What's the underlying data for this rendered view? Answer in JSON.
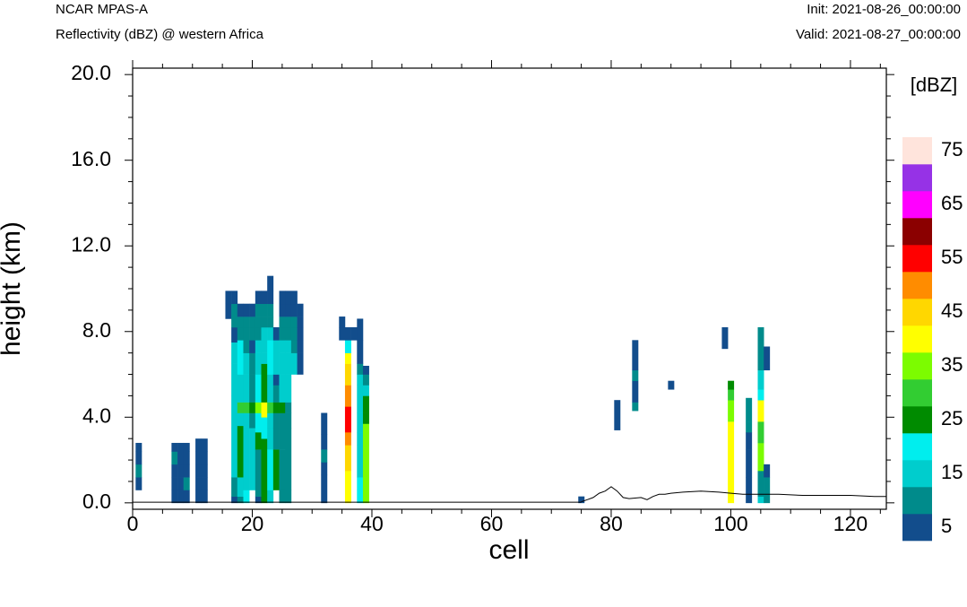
{
  "header": {
    "model": "NCAR MPAS-A",
    "field": "Reflectivity (dBZ) @ western Africa",
    "init": "Init: 2021-08-26_00:00:00",
    "valid": "Valid: 2021-08-27_00:00:00"
  },
  "chart_data": {
    "type": "heatmap",
    "xlabel": "cell",
    "ylabel": "height (km)",
    "xlim": [
      0,
      126
    ],
    "ylim": [
      -0.3,
      20.3
    ],
    "x_ticks": [
      "0",
      "20",
      "40",
      "60",
      "80",
      "100",
      "120"
    ],
    "x_tick_values": [
      0,
      20,
      40,
      60,
      80,
      100,
      120
    ],
    "y_ticks": [
      "0.0",
      "4.0",
      "8.0",
      "12.0",
      "16.0",
      "20.0"
    ],
    "y_tick_values": [
      0,
      4,
      8,
      12,
      16,
      20
    ],
    "grid": false,
    "colorbar": {
      "title": "[dBZ]",
      "tick_labels": [
        "5",
        "15",
        "25",
        "35",
        "45",
        "55",
        "65",
        "75"
      ],
      "levels": [
        5,
        10,
        15,
        20,
        25,
        30,
        35,
        40,
        45,
        50,
        55,
        60,
        65,
        70,
        75
      ],
      "colors": [
        "#124d8c",
        "#008b8b",
        "#00cdcd",
        "#00eeee",
        "#008b00",
        "#32cd32",
        "#7cfc00",
        "#ffff00",
        "#ffd700",
        "#ff8c00",
        "#ff0000",
        "#8b0000",
        "#ff00ff",
        "#9632e6",
        "#ffe4dc"
      ]
    },
    "cell_dz_km": 0.6,
    "columns": [
      {
        "x": 1,
        "bins": [
          [
            0.6,
            1.2,
            5
          ],
          [
            1.2,
            1.8,
            10
          ],
          [
            1.8,
            2.4,
            5
          ],
          [
            2.4,
            2.8,
            5
          ]
        ]
      },
      {
        "x": 7,
        "bins": [
          [
            0,
            0.6,
            5
          ],
          [
            0.6,
            1.2,
            5
          ],
          [
            1.2,
            1.8,
            5
          ],
          [
            1.8,
            2.4,
            10
          ],
          [
            2.4,
            2.8,
            5
          ]
        ]
      },
      {
        "x": 8,
        "bins": [
          [
            0,
            0.6,
            5
          ],
          [
            0.6,
            1.2,
            5
          ],
          [
            1.2,
            1.8,
            5
          ],
          [
            1.8,
            2.4,
            5
          ],
          [
            2.4,
            2.8,
            5
          ]
        ]
      },
      {
        "x": 9,
        "bins": [
          [
            0,
            0.6,
            5
          ],
          [
            0.6,
            1.2,
            10
          ],
          [
            1.2,
            1.8,
            5
          ],
          [
            1.8,
            2.4,
            5
          ],
          [
            2.4,
            2.8,
            5
          ]
        ]
      },
      {
        "x": 11,
        "bins": [
          [
            0,
            0.6,
            5
          ],
          [
            0.6,
            1.2,
            5
          ],
          [
            1.2,
            1.8,
            5
          ],
          [
            1.8,
            2.4,
            5
          ],
          [
            2.4,
            3.0,
            5
          ]
        ]
      },
      {
        "x": 12,
        "bins": [
          [
            0,
            0.6,
            5
          ],
          [
            0.6,
            1.2,
            5
          ],
          [
            1.2,
            1.8,
            5
          ],
          [
            1.8,
            2.4,
            5
          ],
          [
            2.4,
            3.0,
            5
          ]
        ]
      },
      {
        "x": 16,
        "bins": [
          [
            8.6,
            9.3,
            5
          ],
          [
            9.3,
            9.9,
            5
          ]
        ]
      },
      {
        "x": 17,
        "bins": [
          [
            0,
            0.3,
            5
          ],
          [
            0.3,
            1.2,
            10
          ],
          [
            1.2,
            3.5,
            15
          ],
          [
            3.5,
            5.0,
            15
          ],
          [
            5.0,
            6.5,
            15
          ],
          [
            6.5,
            7.5,
            15
          ],
          [
            7.5,
            8.2,
            5
          ],
          [
            8.2,
            9.3,
            10
          ],
          [
            9.3,
            9.9,
            5
          ]
        ]
      },
      {
        "x": 18,
        "bins": [
          [
            0,
            0.3,
            10
          ],
          [
            0.3,
            1.2,
            15
          ],
          [
            1.2,
            3.6,
            25
          ],
          [
            3.6,
            4.2,
            15
          ],
          [
            4.2,
            4.7,
            30
          ],
          [
            4.7,
            6.0,
            15
          ],
          [
            6.0,
            7.6,
            20
          ],
          [
            7.6,
            8.2,
            10
          ],
          [
            8.2,
            8.7,
            10
          ],
          [
            8.7,
            9.3,
            5
          ]
        ]
      },
      {
        "x": 19,
        "bins": [
          [
            0,
            0.6,
            20
          ],
          [
            0.6,
            3.5,
            15
          ],
          [
            3.5,
            4.2,
            15
          ],
          [
            4.2,
            4.7,
            30
          ],
          [
            4.7,
            6.0,
            15
          ],
          [
            6.0,
            7.0,
            15
          ],
          [
            7.0,
            8.2,
            10
          ],
          [
            8.2,
            8.7,
            10
          ],
          [
            8.7,
            9.3,
            5
          ]
        ]
      },
      {
        "x": 20,
        "bins": [
          [
            0.6,
            3.5,
            15
          ],
          [
            3.5,
            4.2,
            10
          ],
          [
            4.2,
            4.7,
            25
          ],
          [
            4.7,
            6.0,
            10
          ],
          [
            6.0,
            7.0,
            10
          ],
          [
            7.0,
            7.6,
            5
          ],
          [
            7.6,
            8.2,
            10
          ],
          [
            8.2,
            8.7,
            10
          ],
          [
            8.7,
            9.3,
            5
          ]
        ]
      },
      {
        "x": 21,
        "bins": [
          [
            0,
            0.3,
            5
          ],
          [
            0.3,
            2.5,
            10
          ],
          [
            2.5,
            3.3,
            25
          ],
          [
            3.3,
            4.2,
            20
          ],
          [
            4.2,
            4.7,
            35
          ],
          [
            4.7,
            6.0,
            20
          ],
          [
            6.0,
            7.0,
            15
          ],
          [
            7.0,
            7.6,
            15
          ],
          [
            7.6,
            8.2,
            10
          ],
          [
            8.2,
            8.7,
            10
          ],
          [
            8.7,
            9.3,
            10
          ],
          [
            9.3,
            9.9,
            5
          ]
        ]
      },
      {
        "x": 22,
        "bins": [
          [
            0,
            0.6,
            25
          ],
          [
            0.6,
            3.0,
            25
          ],
          [
            3.0,
            4.0,
            20
          ],
          [
            4.0,
            4.7,
            40
          ],
          [
            4.7,
            6.5,
            25
          ],
          [
            6.5,
            7.0,
            15
          ],
          [
            7.0,
            7.6,
            15
          ],
          [
            7.6,
            8.2,
            15
          ],
          [
            8.2,
            8.7,
            10
          ],
          [
            8.7,
            9.3,
            10
          ],
          [
            9.3,
            9.9,
            5
          ]
        ]
      },
      {
        "x": 23,
        "bins": [
          [
            0,
            0.6,
            15
          ],
          [
            0.6,
            2.5,
            20
          ],
          [
            2.5,
            3.5,
            15
          ],
          [
            3.5,
            4.2,
            15
          ],
          [
            4.2,
            4.7,
            30
          ],
          [
            4.7,
            6.0,
            15
          ],
          [
            6.0,
            7.6,
            20
          ],
          [
            7.6,
            8.2,
            15
          ],
          [
            8.2,
            8.7,
            10
          ],
          [
            8.7,
            9.3,
            10
          ],
          [
            9.3,
            9.9,
            5
          ],
          [
            9.9,
            10.6,
            5
          ]
        ]
      },
      {
        "x": 24,
        "bins": [
          [
            0.6,
            2.5,
            25
          ],
          [
            2.5,
            3.5,
            10
          ],
          [
            3.5,
            4.2,
            10
          ],
          [
            4.2,
            4.7,
            25
          ],
          [
            4.7,
            5.5,
            10
          ],
          [
            5.5,
            6.0,
            5
          ],
          [
            6.0,
            7.6,
            15
          ],
          [
            7.6,
            8.2,
            5
          ]
        ]
      },
      {
        "x": 25,
        "bins": [
          [
            0,
            0.6,
            10
          ],
          [
            0.6,
            2.5,
            10
          ],
          [
            2.5,
            3.5,
            10
          ],
          [
            3.5,
            4.2,
            10
          ],
          [
            4.2,
            4.7,
            25
          ],
          [
            4.7,
            6.0,
            15
          ],
          [
            6.0,
            7.0,
            15
          ],
          [
            7.0,
            7.6,
            15
          ],
          [
            7.6,
            8.2,
            10
          ],
          [
            8.2,
            8.7,
            10
          ],
          [
            8.7,
            9.3,
            5
          ],
          [
            9.3,
            9.9,
            5
          ]
        ]
      },
      {
        "x": 26,
        "bins": [
          [
            0,
            0.6,
            10
          ],
          [
            0.6,
            3.5,
            10
          ],
          [
            3.5,
            4.2,
            10
          ],
          [
            4.2,
            4.7,
            10
          ],
          [
            4.7,
            6.0,
            15
          ],
          [
            6.0,
            7.0,
            15
          ],
          [
            7.0,
            7.6,
            15
          ],
          [
            7.6,
            8.2,
            10
          ],
          [
            8.2,
            8.7,
            10
          ],
          [
            8.7,
            9.3,
            5
          ],
          [
            9.3,
            9.9,
            5
          ]
        ]
      },
      {
        "x": 27,
        "bins": [
          [
            6.0,
            7.0,
            15
          ],
          [
            7.0,
            7.6,
            10
          ],
          [
            7.6,
            8.2,
            10
          ],
          [
            8.2,
            8.7,
            10
          ],
          [
            8.7,
            9.3,
            5
          ],
          [
            9.3,
            9.9,
            5
          ]
        ]
      },
      {
        "x": 28,
        "bins": [
          [
            6.0,
            7.0,
            5
          ],
          [
            7.0,
            7.6,
            5
          ],
          [
            7.6,
            8.2,
            5
          ],
          [
            8.2,
            8.7,
            5
          ],
          [
            8.7,
            9.3,
            5
          ]
        ]
      },
      {
        "x": 32,
        "bins": [
          [
            0,
            1.3,
            5
          ],
          [
            1.3,
            1.9,
            5
          ],
          [
            1.9,
            2.5,
            10
          ],
          [
            2.5,
            3.2,
            5
          ],
          [
            3.2,
            4.2,
            5
          ]
        ]
      },
      {
        "x": 35,
        "bins": [
          [
            7.6,
            8.2,
            5
          ],
          [
            8.2,
            8.7,
            5
          ]
        ]
      },
      {
        "x": 36,
        "bins": [
          [
            0,
            1.5,
            40
          ],
          [
            1.5,
            2.7,
            45
          ],
          [
            2.7,
            3.3,
            50
          ],
          [
            3.3,
            4.5,
            55
          ],
          [
            4.5,
            5.5,
            50
          ],
          [
            5.5,
            6.5,
            45
          ],
          [
            6.5,
            7.0,
            40
          ],
          [
            7.0,
            7.6,
            20
          ],
          [
            7.6,
            8.2,
            5
          ]
        ]
      },
      {
        "x": 37,
        "bins": [
          [
            7.6,
            8.2,
            5
          ]
        ]
      },
      {
        "x": 38,
        "bins": [
          [
            0,
            0.6,
            20
          ],
          [
            0.6,
            1.2,
            20
          ],
          [
            1.2,
            2.7,
            15
          ],
          [
            2.7,
            3.3,
            15
          ],
          [
            3.3,
            4.2,
            15
          ],
          [
            4.2,
            5.5,
            15
          ],
          [
            5.5,
            6.0,
            15
          ],
          [
            6.0,
            6.5,
            10
          ],
          [
            6.5,
            7.6,
            5
          ],
          [
            7.6,
            8.6,
            5
          ]
        ]
      },
      {
        "x": 39,
        "bins": [
          [
            0,
            1.2,
            35
          ],
          [
            1.2,
            2.7,
            35
          ],
          [
            2.7,
            3.7,
            35
          ],
          [
            3.7,
            4.2,
            25
          ],
          [
            4.2,
            5.0,
            25
          ],
          [
            5.0,
            5.5,
            15
          ],
          [
            5.5,
            6.0,
            10
          ],
          [
            6.0,
            6.4,
            5
          ]
        ]
      },
      {
        "x": 75,
        "bins": [
          [
            0,
            0.3,
            5
          ]
        ]
      },
      {
        "x": 81,
        "bins": [
          [
            3.4,
            4.8,
            5
          ]
        ]
      },
      {
        "x": 84,
        "bins": [
          [
            4.3,
            4.7,
            10
          ],
          [
            4.7,
            5.7,
            5
          ],
          [
            5.7,
            6.2,
            10
          ],
          [
            6.2,
            7.6,
            5
          ]
        ]
      },
      {
        "x": 90,
        "bins": [
          [
            5.3,
            5.7,
            5
          ]
        ]
      },
      {
        "x": 99,
        "bins": [
          [
            7.2,
            8.2,
            5
          ]
        ]
      },
      {
        "x": 100,
        "bins": [
          [
            0,
            3.8,
            40
          ],
          [
            3.8,
            4.8,
            35
          ],
          [
            4.8,
            5.3,
            30
          ],
          [
            5.3,
            5.7,
            25
          ]
        ]
      },
      {
        "x": 103,
        "bins": [
          [
            0,
            1.2,
            5
          ],
          [
            1.2,
            2.5,
            5
          ],
          [
            2.5,
            3.3,
            5
          ],
          [
            3.3,
            3.8,
            10
          ],
          [
            3.8,
            4.9,
            10
          ]
        ]
      },
      {
        "x": 105,
        "bins": [
          [
            0,
            0.3,
            15
          ],
          [
            0.3,
            1.5,
            10
          ],
          [
            1.5,
            2.8,
            35
          ],
          [
            2.8,
            3.8,
            30
          ],
          [
            3.8,
            4.3,
            40
          ],
          [
            4.3,
            4.8,
            40
          ],
          [
            4.8,
            5.3,
            20
          ],
          [
            5.3,
            6.2,
            15
          ],
          [
            6.2,
            7.6,
            10
          ],
          [
            7.6,
            8.2,
            10
          ]
        ]
      },
      {
        "x": 106,
        "bins": [
          [
            0,
            0.5,
            10
          ],
          [
            0.5,
            1.2,
            10
          ],
          [
            1.2,
            1.8,
            5
          ],
          [
            6.2,
            7.3,
            5
          ]
        ]
      }
    ],
    "terrain": {
      "x": [
        75,
        76,
        77,
        78,
        79,
        80,
        81,
        82,
        83,
        85,
        86,
        87,
        88,
        89,
        90,
        92,
        95,
        98,
        100,
        102,
        104,
        106,
        108,
        112,
        116,
        120,
        124,
        125
      ],
      "y": [
        0.05,
        0.15,
        0.25,
        0.45,
        0.55,
        0.75,
        0.55,
        0.25,
        0.2,
        0.25,
        0.15,
        0.3,
        0.4,
        0.4,
        0.45,
        0.5,
        0.55,
        0.5,
        0.45,
        0.4,
        0.4,
        0.4,
        0.4,
        0.35,
        0.35,
        0.35,
        0.3,
        0.3
      ]
    }
  }
}
